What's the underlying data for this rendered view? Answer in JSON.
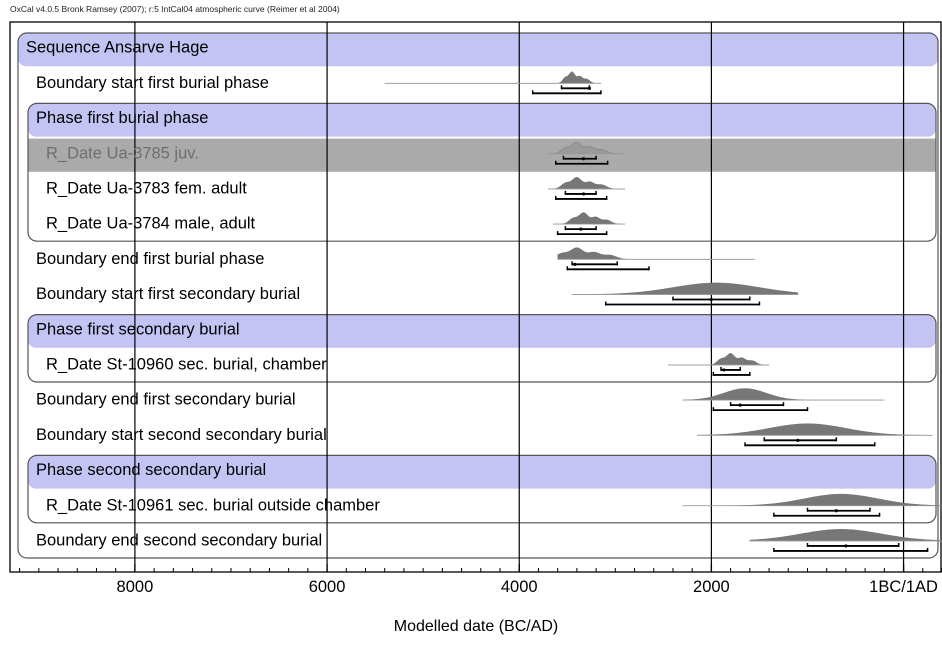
{
  "header": "OxCal v4.0.5 Bronk Ramsey (2007); r:5 IntCal04 atmospheric curve (Reimer et al 2004)",
  "colors": {
    "band": "#c4c4f4",
    "highlight_band": "#aaaaaa",
    "dist_fill": "#777777",
    "dist_fill_excluded": "#9a9a9a",
    "line": "#000000"
  },
  "chart_data": {
    "type": "oxcal-multiplot",
    "xlabel": "Modelled date (BC/AD)",
    "xlim": [
      9300,
      -400
    ],
    "ticks": [
      {
        "value": 8000,
        "label": "8000"
      },
      {
        "value": 6000,
        "label": "6000"
      },
      {
        "value": 4000,
        "label": "4000"
      },
      {
        "value": 2000,
        "label": "2000"
      },
      {
        "value": 0,
        "label": "1BC/1AD"
      }
    ],
    "minor_tick_step": 200,
    "grid": true,
    "rows": [
      {
        "label": "Sequence Ansarve Hage",
        "kind": "sequence-header"
      },
      {
        "label": "Boundary start first burial phase",
        "kind": "item",
        "level": 0,
        "dist": {
          "shape": "multi",
          "peak": 3450,
          "spread": 90,
          "tail_left": 5400,
          "tail_right": 3150
        },
        "range_68": [
          3560,
          3270
        ],
        "range_95": [
          3860,
          3150
        ],
        "median": 3270
      },
      {
        "label": "Phase first burial phase",
        "kind": "phase-header"
      },
      {
        "label": "R_Date Ua-3785 juv.",
        "kind": "item",
        "level": 1,
        "excluded": true,
        "dist": {
          "shape": "multi",
          "peak": 3400,
          "spread": 150,
          "tail_left": 3700,
          "tail_right": 2900
        },
        "range_68": [
          3540,
          3200
        ],
        "range_95": [
          3620,
          3080
        ],
        "median": 3330
      },
      {
        "label": "R_Date Ua-3783 fem. adult",
        "kind": "item",
        "level": 1,
        "dist": {
          "shape": "multi",
          "peak": 3400,
          "spread": 150,
          "tail_left": 3700,
          "tail_right": 2900
        },
        "range_68": [
          3520,
          3200
        ],
        "range_95": [
          3620,
          3090
        ],
        "median": 3330
      },
      {
        "label": "R_Date Ua-3784 male, adult",
        "kind": "item",
        "level": 1,
        "dist": {
          "shape": "multi",
          "peak": 3330,
          "spread": 140,
          "tail_left": 3650,
          "tail_right": 2900
        },
        "range_68": [
          3520,
          3200
        ],
        "range_95": [
          3600,
          3090
        ],
        "median": 3360
      },
      {
        "label": "Boundary end first burial phase",
        "kind": "item",
        "level": 0,
        "dist": {
          "shape": "multi",
          "peak": 3400,
          "spread": 200,
          "tail_left": 3600,
          "tail_right": 1550
        },
        "range_68": [
          3450,
          2980
        ],
        "range_95": [
          3500,
          2650
        ],
        "median": 3420
      },
      {
        "label": "Boundary start first secondary burial",
        "kind": "item",
        "level": 0,
        "dist": {
          "shape": "smooth",
          "peak": 1950,
          "spread": 450,
          "tail_left": 3450,
          "tail_right": 1100
        },
        "range_68": [
          2400,
          1600
        ],
        "range_95": [
          3100,
          1500
        ],
        "median": 2000
      },
      {
        "label": "Phase first secondary burial",
        "kind": "phase-header"
      },
      {
        "label": "R_Date St-10960 sec. burial, chamber",
        "kind": "item",
        "level": 1,
        "dist": {
          "shape": "multi",
          "peak": 1800,
          "spread": 130,
          "tail_left": 2450,
          "tail_right": 1400
        },
        "range_68": [
          1900,
          1700
        ],
        "range_95": [
          1980,
          1600
        ],
        "median": 1870
      },
      {
        "label": "Boundary end first secondary burial",
        "kind": "item",
        "level": 0,
        "dist": {
          "shape": "smooth",
          "peak": 1650,
          "spread": 220,
          "tail_left": 2300,
          "tail_right": 200
        },
        "range_68": [
          1800,
          1250
        ],
        "range_95": [
          1980,
          1000
        ],
        "median": 1700
      },
      {
        "label": "Boundary start second secondary burial",
        "kind": "item",
        "level": 0,
        "dist": {
          "shape": "smooth",
          "peak": 1000,
          "spread": 400,
          "tail_left": 2150,
          "tail_right": -300
        },
        "range_68": [
          1450,
          700
        ],
        "range_95": [
          1650,
          300
        ],
        "median": 1100
      },
      {
        "label": "Phase second secondary burial",
        "kind": "phase-header"
      },
      {
        "label": "R_Date St-10961 sec. burial outside chamber",
        "kind": "item",
        "level": 1,
        "dist": {
          "shape": "smooth",
          "peak": 650,
          "spread": 380,
          "tail_left": 2300,
          "tail_right": -400
        },
        "range_68": [
          1000,
          350
        ],
        "range_95": [
          1350,
          250
        ],
        "median": 700
      },
      {
        "label": "Boundary end second secondary burial",
        "kind": "item",
        "level": 0,
        "dist": {
          "shape": "smooth",
          "peak": 650,
          "spread": 420,
          "tail_left": 1600,
          "tail_right": -500
        },
        "range_68": [
          1000,
          50
        ],
        "range_95": [
          1350,
          -250
        ],
        "median": 600
      }
    ]
  }
}
